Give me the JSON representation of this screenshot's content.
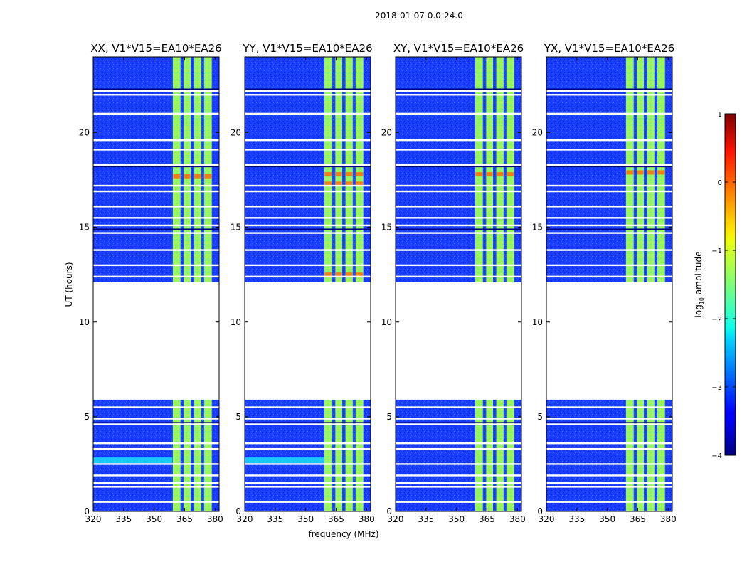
{
  "chart_data": {
    "type": "heatmap",
    "suptitle": "2018-01-07 0.0-24.0",
    "xlabel": "frequency (MHz)",
    "ylabel": "UT (hours)",
    "xlim": [
      320,
      382
    ],
    "ylim": [
      0,
      24
    ],
    "xticks": [
      320,
      335,
      350,
      365,
      380
    ],
    "yticks": [
      0,
      5,
      10,
      15,
      20
    ],
    "gap_hours": [
      12.1,
      5.9
    ],
    "active_band_mhz": [
      359,
      379
    ],
    "band_channels_mhz": [
      [
        359,
        363.2
      ],
      [
        364.4,
        368.2
      ],
      [
        369.4,
        373.4
      ],
      [
        374.4,
        378.6
      ]
    ],
    "flagged_rows_ut": [
      0.5,
      1.3,
      1.5,
      1.9,
      2.5,
      3.3,
      3.6,
      4.6,
      4.9,
      5.5,
      12.4,
      13.0,
      13.8,
      14.7,
      15.1,
      15.5,
      16.1,
      16.9,
      17.2,
      18.3,
      19.1,
      19.6,
      21.0,
      22.0,
      22.2
    ],
    "panels": [
      {
        "title": "XX, V1*V15=EA10*EA26",
        "peak_rows_ut": [
          17.7
        ],
        "calibrator_row_ut": 2.7
      },
      {
        "title": "YY, V1*V15=EA10*EA26",
        "peak_rows_ut": [
          12.5,
          17.3,
          17.8
        ],
        "calibrator_row_ut": 2.7
      },
      {
        "title": "XY, V1*V15=EA10*EA26",
        "peak_rows_ut": [
          17.8
        ],
        "calibrator_row_ut": null
      },
      {
        "title": "YX, V1*V15=EA10*EA26",
        "peak_rows_ut": [
          17.9
        ],
        "calibrator_row_ut": null
      }
    ],
    "colorbar": {
      "label": "log10 amplitude",
      "label_base": "log",
      "label_sub": "10",
      "label_rest": " amplitude",
      "range": [
        -4,
        1
      ],
      "ticks": [
        1,
        0,
        -1,
        -2,
        -3,
        -4
      ],
      "tick_labels": [
        "1",
        "0",
        "−1",
        "−2",
        "−3",
        "−4"
      ],
      "colormap": "jet"
    }
  }
}
